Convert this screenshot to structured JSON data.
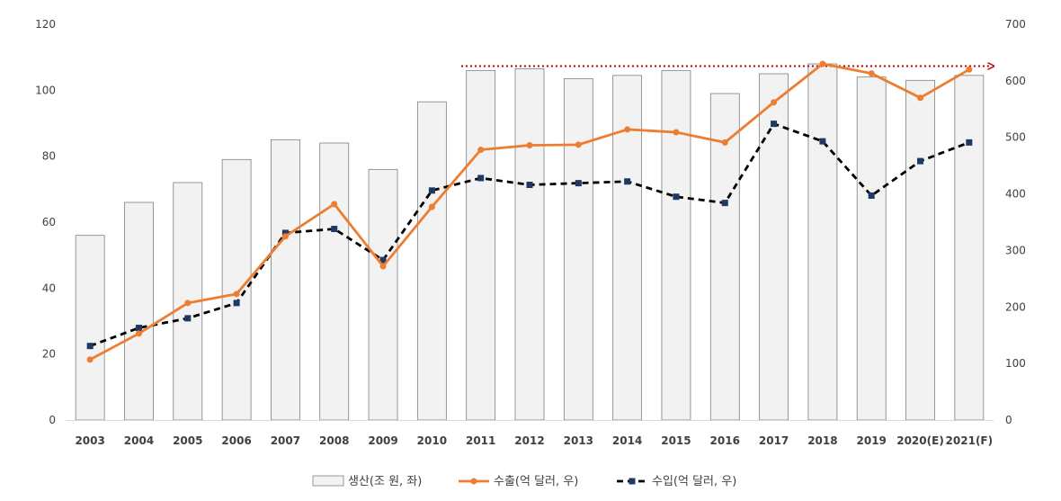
{
  "chart_data": {
    "type": "bar",
    "title": "",
    "xlabel": "",
    "ylabel": "",
    "y2label": "",
    "categories": [
      "2003",
      "2004",
      "2005",
      "2006",
      "2007",
      "2008",
      "2009",
      "2010",
      "2011",
      "2012",
      "2013",
      "2014",
      "2015",
      "2016",
      "2017",
      "2018",
      "2019",
      "2020(E)",
      "2021(F)"
    ],
    "ylim": [
      0,
      120
    ],
    "y2lim": [
      0,
      700
    ],
    "yticks": [
      0,
      20,
      40,
      60,
      80,
      100,
      120
    ],
    "y2ticks": [
      0,
      100,
      200,
      300,
      400,
      500,
      600,
      700
    ],
    "grid": false,
    "legend_position": "bottom",
    "series": [
      {
        "name": "생산(조 원, 좌)",
        "type": "bar",
        "axis": "left",
        "color": "#f2f2f2",
        "edge_color": "#7f7f7f",
        "values": [
          56,
          66,
          72,
          79,
          85,
          84,
          76,
          96.5,
          106,
          106.5,
          103.5,
          104.5,
          106,
          99,
          105,
          108,
          104,
          103,
          104.5
        ]
      },
      {
        "name": "수출(억 달러, 우)",
        "type": "line",
        "axis": "right",
        "color": "#ed7d31",
        "values": [
          107,
          153,
          207,
          223,
          325,
          382,
          272,
          377,
          478,
          486,
          487,
          514,
          509,
          491,
          562,
          630,
          613,
          570,
          620
        ]
      },
      {
        "name": "수입(억 달러, 우)",
        "type": "line",
        "axis": "right",
        "color": "#000000",
        "marker_color": "#1f3864",
        "dashed": true,
        "values": [
          131,
          163,
          180,
          207,
          331,
          338,
          283,
          406,
          428,
          416,
          419,
          422,
          395,
          384,
          524,
          493,
          397,
          458,
          491
        ]
      }
    ],
    "annotations": [
      {
        "type": "reference-arrow",
        "axis": "right",
        "y": 626,
        "from_index": 7.6,
        "to": "right-edge",
        "color": "#c00000",
        "style": "dotted"
      }
    ]
  }
}
